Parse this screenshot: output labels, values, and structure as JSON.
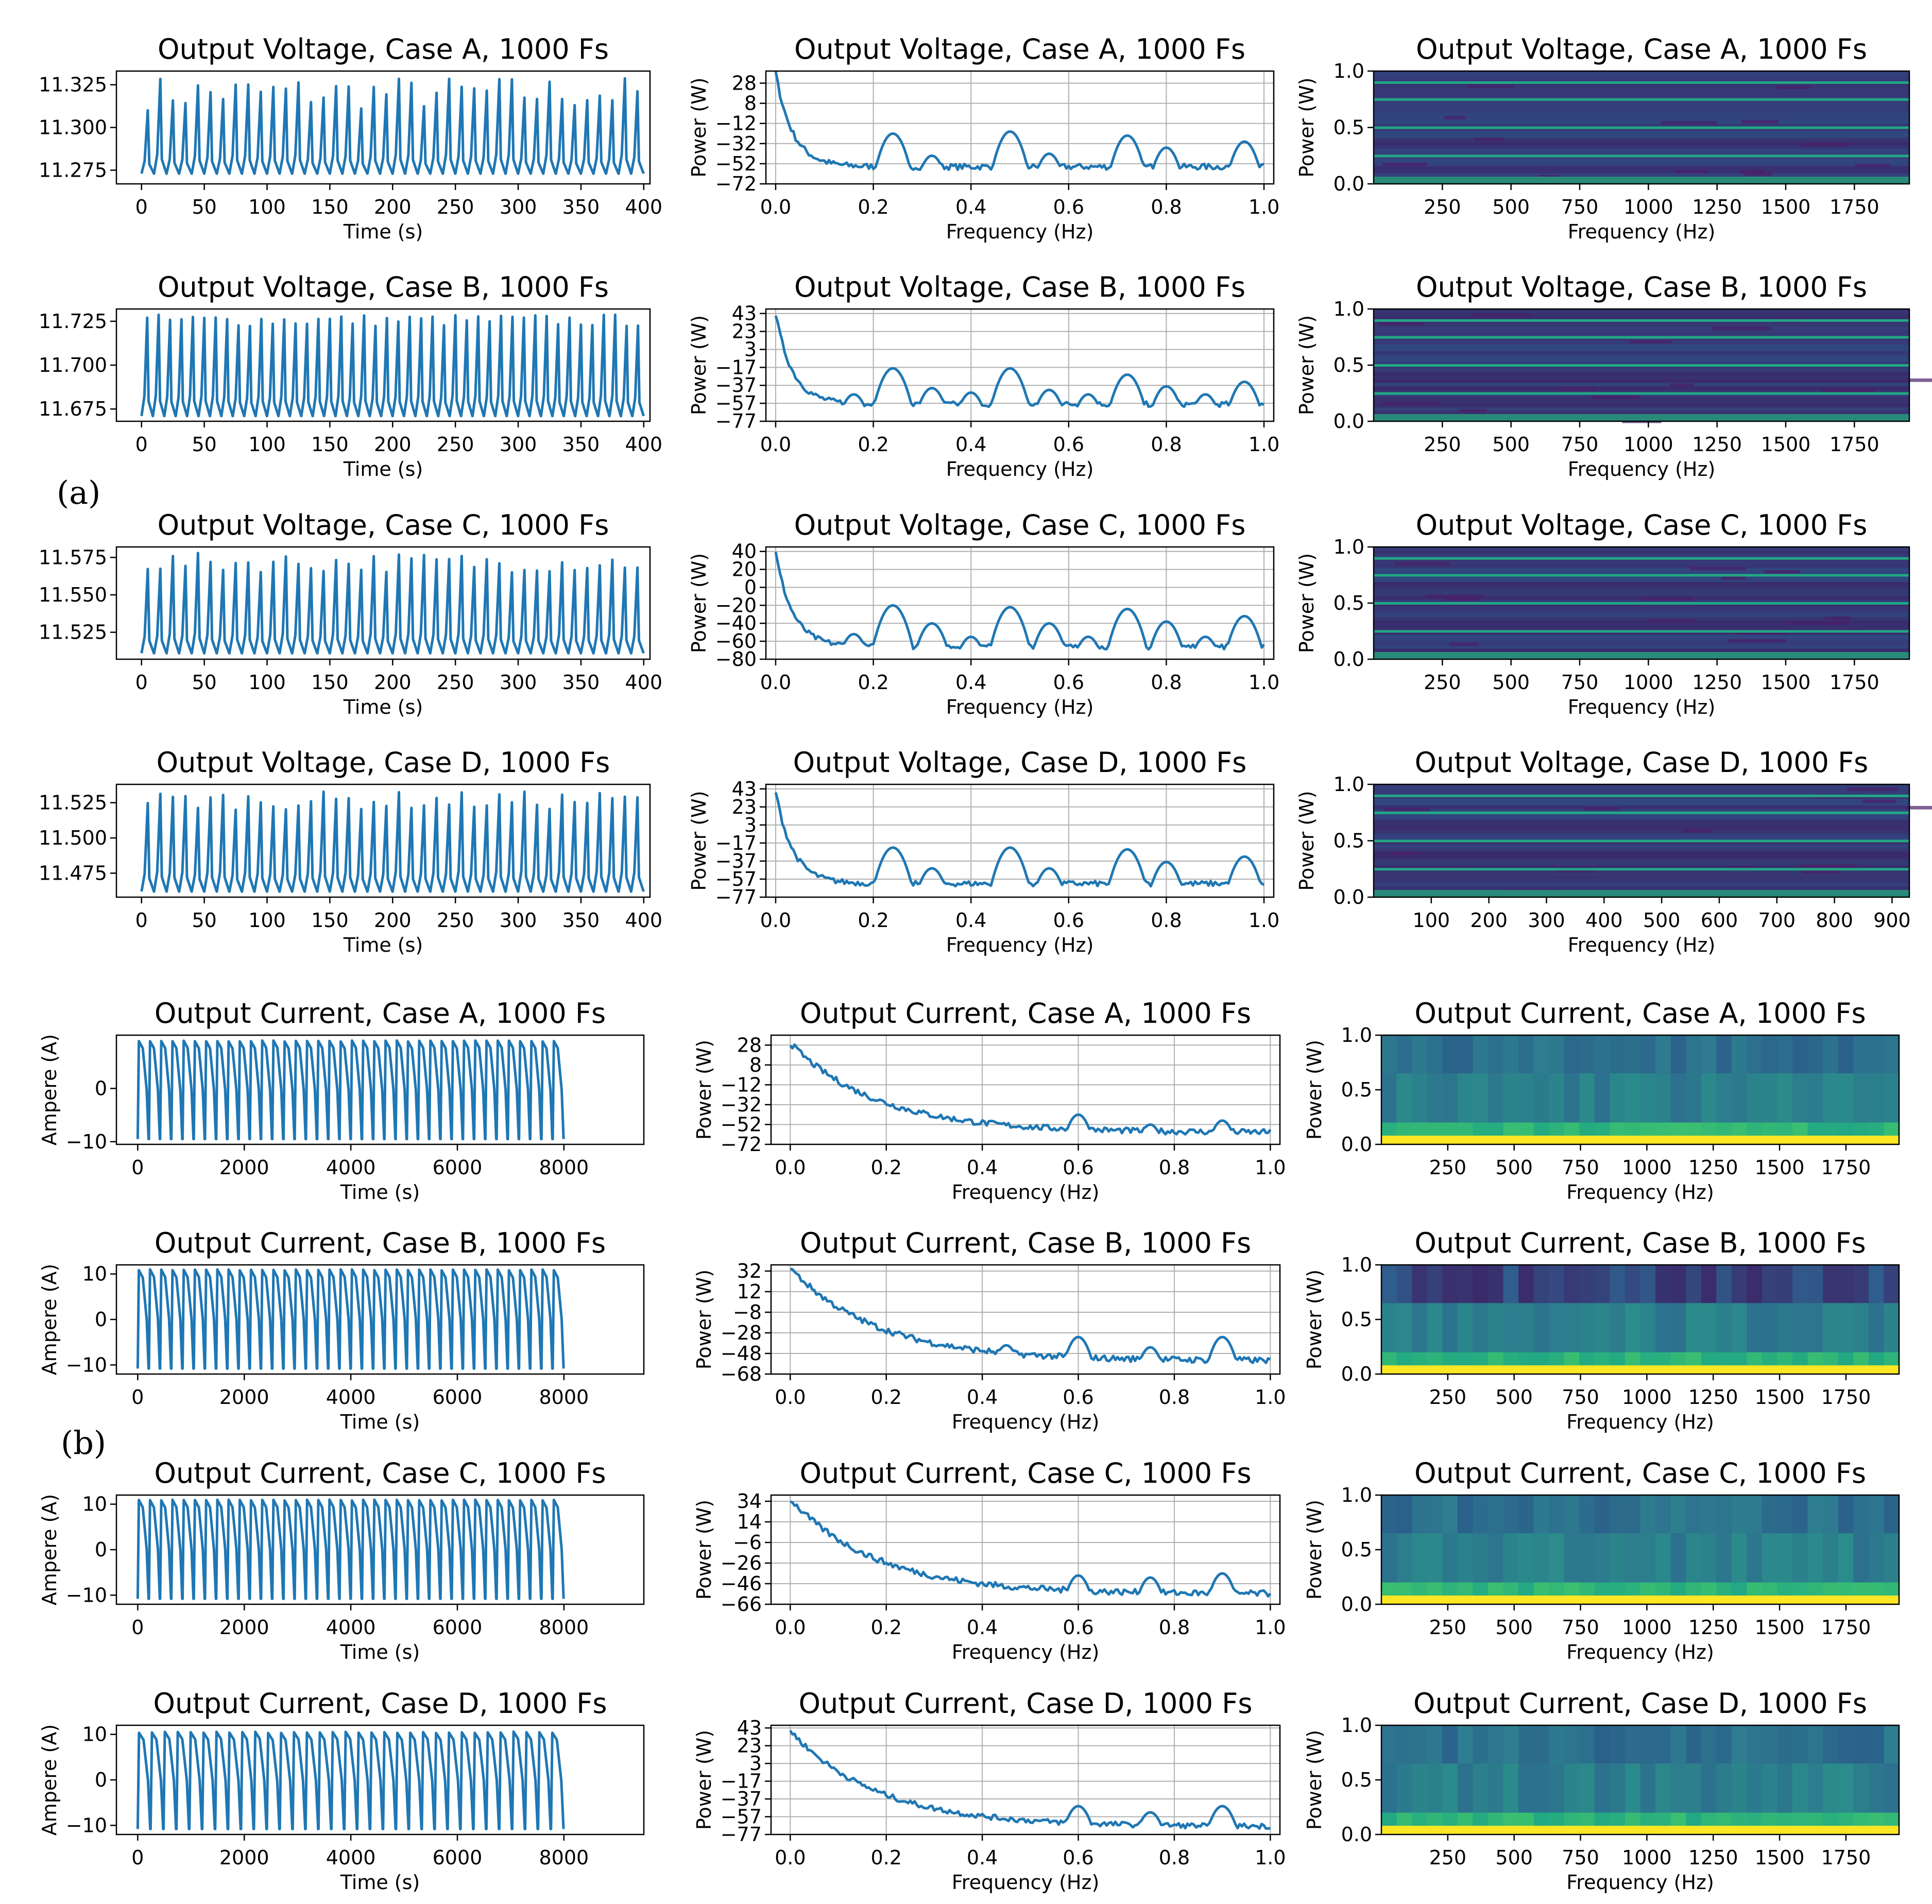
{
  "panel_labels": {
    "a": "(a)",
    "b": "(b)"
  },
  "colors": {
    "line": "#1f77b4",
    "axis": "#000000",
    "grid": "#b0b0b0",
    "spectro_dark": "#3b1a5a",
    "spectro_mid": "#2a6e8e",
    "spectro_bright": "#22a884",
    "spectro_yellow": "#fde725"
  },
  "chart_data": [
    {
      "type": "line",
      "kind": "time",
      "title": "Output Voltage, Case A, 1000 Fs",
      "xlabel": "Time (s)",
      "ylabel": "",
      "xticks": [
        "0",
        "50",
        "100",
        "150",
        "200",
        "250",
        "300",
        "350",
        "400"
      ],
      "xlim": [
        -20,
        405
      ],
      "yticks": [
        "11.275",
        "11.300",
        "11.325"
      ],
      "ytick_values": [
        11.275,
        11.3,
        11.325
      ],
      "ylim": [
        11.267,
        11.333
      ],
      "baseline": 11.273,
      "peaks_range": [
        11.31,
        11.33
      ],
      "cycles": 40,
      "grid": false
    },
    {
      "type": "line",
      "kind": "fft",
      "title": "Output Voltage, Case A, 1000 Fs",
      "xlabel": "Frequency (Hz)",
      "ylabel": "Power (W)",
      "xticks": [
        "0.0",
        "0.2",
        "0.4",
        "0.6",
        "0.8",
        "1.0"
      ],
      "xlim": [
        -0.02,
        1.02
      ],
      "yticks": [
        "28",
        "8",
        "−12",
        "−32",
        "−52",
        "−72"
      ],
      "ytick_values": [
        28,
        8,
        -12,
        -32,
        -52,
        -72
      ],
      "ylim": [
        -72,
        40
      ],
      "peaks": [
        [
          0.24,
          -22
        ],
        [
          0.32,
          -44
        ],
        [
          0.48,
          -20
        ],
        [
          0.56,
          -42
        ],
        [
          0.72,
          -24
        ],
        [
          0.8,
          -36
        ],
        [
          0.96,
          -30
        ]
      ],
      "start": 38,
      "floor": -55,
      "grid": true
    },
    {
      "type": "heatmap",
      "kind": "spectrogram",
      "title": "Output Voltage, Case A, 1000 Fs",
      "xlabel": "Frequency (Hz)",
      "ylabel": "Power (W)",
      "xticks": [
        "250",
        "500",
        "750",
        "1000",
        "1250",
        "1500",
        "1750"
      ],
      "xlim": [
        0,
        1950
      ],
      "yticks": [
        "0.0",
        "0.5",
        "1.0"
      ],
      "ylim": [
        0,
        1
      ],
      "style": "voltage"
    },
    {
      "type": "line",
      "kind": "time",
      "title": "Output Voltage, Case B, 1000 Fs",
      "xlabel": "Time (s)",
      "ylabel": "",
      "xticks": [
        "0",
        "50",
        "100",
        "150",
        "200",
        "250",
        "300",
        "350",
        "400"
      ],
      "xlim": [
        -20,
        405
      ],
      "yticks": [
        "11.675",
        "11.700",
        "11.725"
      ],
      "ytick_values": [
        11.675,
        11.7,
        11.725
      ],
      "ylim": [
        11.668,
        11.732
      ],
      "baseline": 11.671,
      "peaks_range": [
        11.722,
        11.729
      ],
      "cycles": 44,
      "grid": false
    },
    {
      "type": "line",
      "kind": "fft",
      "title": "Output Voltage, Case B, 1000 Fs",
      "xlabel": "Frequency (Hz)",
      "ylabel": "Power (W)",
      "xticks": [
        "0.0",
        "0.2",
        "0.4",
        "0.6",
        "0.8",
        "1.0"
      ],
      "xlim": [
        -0.02,
        1.02
      ],
      "yticks": [
        "43",
        "23",
        "3",
        "−17",
        "−37",
        "−57",
        "−77"
      ],
      "ytick_values": [
        43,
        23,
        3,
        -17,
        -37,
        -57,
        -77
      ],
      "ylim": [
        -77,
        48
      ],
      "peaks": [
        [
          0.16,
          -47
        ],
        [
          0.24,
          -18
        ],
        [
          0.32,
          -40
        ],
        [
          0.4,
          -45
        ],
        [
          0.48,
          -18
        ],
        [
          0.56,
          -42
        ],
        [
          0.64,
          -47
        ],
        [
          0.72,
          -25
        ],
        [
          0.8,
          -38
        ],
        [
          0.88,
          -47
        ],
        [
          0.96,
          -33
        ]
      ],
      "start": 42,
      "floor": -58,
      "grid": true
    },
    {
      "type": "heatmap",
      "kind": "spectrogram",
      "title": "Output Voltage, Case B, 1000 Fs",
      "xlabel": "Frequency (Hz)",
      "ylabel": "Power (W)",
      "xticks": [
        "250",
        "500",
        "750",
        "1000",
        "1250",
        "1500",
        "1750"
      ],
      "xlim": [
        0,
        1950
      ],
      "yticks": [
        "0.0",
        "0.5",
        "1.0"
      ],
      "ylim": [
        0,
        1
      ],
      "style": "voltage"
    },
    {
      "type": "line",
      "kind": "time",
      "title": "Output Voltage, Case C, 1000 Fs",
      "xlabel": "Time (s)",
      "ylabel": "",
      "xticks": [
        "0",
        "50",
        "100",
        "150",
        "200",
        "250",
        "300",
        "350",
        "400"
      ],
      "xlim": [
        -20,
        405
      ],
      "yticks": [
        "11.525",
        "11.550",
        "11.575"
      ],
      "ytick_values": [
        11.525,
        11.55,
        11.575
      ],
      "ylim": [
        11.507,
        11.582
      ],
      "baseline": 11.511,
      "peaks_range": [
        11.565,
        11.578
      ],
      "cycles": 40,
      "grid": false
    },
    {
      "type": "line",
      "kind": "fft",
      "title": "Output Voltage, Case C, 1000 Fs",
      "xlabel": "Frequency (Hz)",
      "ylabel": "Power (W)",
      "xticks": [
        "0.0",
        "0.2",
        "0.4",
        "0.6",
        "0.8",
        "1.0"
      ],
      "xlim": [
        -0.02,
        1.02
      ],
      "yticks": [
        "40",
        "20",
        "0",
        "−20",
        "−40",
        "−60",
        "−80"
      ],
      "ytick_values": [
        40,
        20,
        0,
        -20,
        -40,
        -60,
        -80
      ],
      "ylim": [
        -80,
        45
      ],
      "peaks": [
        [
          0.16,
          -52
        ],
        [
          0.24,
          -20
        ],
        [
          0.32,
          -40
        ],
        [
          0.4,
          -55
        ],
        [
          0.48,
          -22
        ],
        [
          0.56,
          -40
        ],
        [
          0.64,
          -55
        ],
        [
          0.72,
          -24
        ],
        [
          0.8,
          -38
        ],
        [
          0.88,
          -55
        ],
        [
          0.96,
          -32
        ]
      ],
      "start": 38,
      "floor": -66,
      "grid": true
    },
    {
      "type": "heatmap",
      "kind": "spectrogram",
      "title": "Output Voltage, Case C, 1000 Fs",
      "xlabel": "Frequency (Hz)",
      "ylabel": "Power (W)",
      "xticks": [
        "250",
        "500",
        "750",
        "1000",
        "1250",
        "1500",
        "1750"
      ],
      "xlim": [
        0,
        1950
      ],
      "yticks": [
        "0.0",
        "0.5",
        "1.0"
      ],
      "ylim": [
        0,
        1
      ],
      "style": "voltage"
    },
    {
      "type": "line",
      "kind": "time",
      "title": "Output Voltage, Case D, 1000 Fs",
      "xlabel": "Time (s)",
      "ylabel": "",
      "xticks": [
        "0",
        "50",
        "100",
        "150",
        "200",
        "250",
        "300",
        "350",
        "400"
      ],
      "xlim": [
        -20,
        405
      ],
      "yticks": [
        "11.475",
        "11.500",
        "11.525"
      ],
      "ytick_values": [
        11.475,
        11.5,
        11.525
      ],
      "ylim": [
        11.458,
        11.538
      ],
      "baseline": 11.462,
      "peaks_range": [
        11.52,
        11.533
      ],
      "cycles": 40,
      "grid": false
    },
    {
      "type": "line",
      "kind": "fft",
      "title": "Output Voltage, Case D, 1000 Fs",
      "xlabel": "Frequency (Hz)",
      "ylabel": "Power (W)",
      "xticks": [
        "0.0",
        "0.2",
        "0.4",
        "0.6",
        "0.8",
        "1.0"
      ],
      "xlim": [
        -0.02,
        1.02
      ],
      "yticks": [
        "43",
        "23",
        "3",
        "−17",
        "−37",
        "−57",
        "−77"
      ],
      "ytick_values": [
        43,
        23,
        3,
        -17,
        -37,
        -57,
        -77
      ],
      "ylim": [
        -77,
        48
      ],
      "peaks": [
        [
          0.24,
          -22
        ],
        [
          0.32,
          -45
        ],
        [
          0.48,
          -22
        ],
        [
          0.56,
          -45
        ],
        [
          0.72,
          -24
        ],
        [
          0.8,
          -38
        ],
        [
          0.96,
          -32
        ]
      ],
      "start": 40,
      "floor": -62,
      "grid": true
    },
    {
      "type": "heatmap",
      "kind": "spectrogram",
      "title": "Output Voltage, Case D, 1000 Fs",
      "xlabel": "Frequency (Hz)",
      "ylabel": "Power (W)",
      "xticks": [
        "100",
        "200",
        "300",
        "400",
        "500",
        "600",
        "700",
        "800",
        "900"
      ],
      "xlim": [
        0,
        930
      ],
      "yticks": [
        "0.0",
        "0.5",
        "1.0"
      ],
      "ylim": [
        0,
        1
      ],
      "style": "voltage"
    },
    {
      "type": "line",
      "kind": "time",
      "title": "Output Current, Case A, 1000 Fs",
      "xlabel": "Time (s)",
      "ylabel": "Ampere (A)",
      "xticks": [
        "0",
        "2000",
        "4000",
        "6000",
        "8000"
      ],
      "xlim": [
        -400,
        9500
      ],
      "yticks": [
        "−10",
        "0"
      ],
      "ytick_values": [
        -10,
        0
      ],
      "ylim": [
        -10.5,
        10
      ],
      "baseline": -9.5,
      "peaks_range": [
        8.8,
        9.0
      ],
      "cycles": 38,
      "grid": false
    },
    {
      "type": "line",
      "kind": "fft",
      "title": "Output Current, Case A, 1000 Fs",
      "xlabel": "Frequency (Hz)",
      "ylabel": "Power (W)",
      "xticks": [
        "0.0",
        "0.2",
        "0.4",
        "0.6",
        "0.8",
        "1.0"
      ],
      "xlim": [
        -0.04,
        1.02
      ],
      "yticks": [
        "28",
        "8",
        "−12",
        "−32",
        "−52",
        "−72"
      ],
      "ytick_values": [
        28,
        8,
        -12,
        -32,
        -52,
        -72
      ],
      "ylim": [
        -72,
        38
      ],
      "peaks": [
        [
          0.6,
          -42
        ],
        [
          0.75,
          -52
        ],
        [
          0.9,
          -48
        ]
      ],
      "start": 30,
      "floor": -60,
      "grid": true
    },
    {
      "type": "heatmap",
      "kind": "spectrogram",
      "title": "Output Current, Case A, 1000 Fs",
      "xlabel": "Frequency (Hz)",
      "ylabel": "Power (W)",
      "xticks": [
        "250",
        "500",
        "750",
        "1000",
        "1250",
        "1500",
        "1750"
      ],
      "xlim": [
        0,
        1950
      ],
      "yticks": [
        "0.0",
        "0.5",
        "1.0"
      ],
      "ylim": [
        0,
        1
      ],
      "style": "current-a"
    },
    {
      "type": "line",
      "kind": "time",
      "title": "Output Current, Case B, 1000 Fs",
      "xlabel": "Time (s)",
      "ylabel": "Ampere (A)",
      "xticks": [
        "0",
        "2000",
        "4000",
        "6000",
        "8000"
      ],
      "xlim": [
        -400,
        9500
      ],
      "yticks": [
        "−10",
        "0",
        "10"
      ],
      "ytick_values": [
        -10,
        0,
        10
      ],
      "ylim": [
        -12,
        12
      ],
      "baseline": -10.8,
      "peaks_range": [
        10.8,
        11.0
      ],
      "cycles": 38,
      "grid": false
    },
    {
      "type": "line",
      "kind": "fft",
      "title": "Output Current, Case B, 1000 Fs",
      "xlabel": "Frequency (Hz)",
      "ylabel": "Power (W)",
      "xticks": [
        "0.0",
        "0.2",
        "0.4",
        "0.6",
        "0.8",
        "1.0"
      ],
      "xlim": [
        -0.04,
        1.02
      ],
      "yticks": [
        "32",
        "12",
        "−8",
        "−28",
        "−48",
        "−68"
      ],
      "ytick_values": [
        32,
        12,
        -8,
        -28,
        -48,
        -68
      ],
      "ylim": [
        -68,
        38
      ],
      "peaks": [
        [
          0.45,
          -40
        ],
        [
          0.6,
          -32
        ],
        [
          0.75,
          -42
        ],
        [
          0.9,
          -32
        ]
      ],
      "start": 35,
      "floor": -55,
      "grid": true
    },
    {
      "type": "heatmap",
      "kind": "spectrogram",
      "title": "Output Current, Case B, 1000 Fs",
      "xlabel": "Frequency (Hz)",
      "ylabel": "Power (W)",
      "xticks": [
        "250",
        "500",
        "750",
        "1000",
        "1250",
        "1500",
        "1750"
      ],
      "xlim": [
        0,
        1950
      ],
      "yticks": [
        "0.0",
        "0.5",
        "1.0"
      ],
      "ylim": [
        0,
        1
      ],
      "style": "current-b"
    },
    {
      "type": "line",
      "kind": "time",
      "title": "Output Current, Case C, 1000 Fs",
      "xlabel": "Time (s)",
      "ylabel": "Ampere (A)",
      "xticks": [
        "0",
        "2000",
        "4000",
        "6000",
        "8000"
      ],
      "xlim": [
        -400,
        9500
      ],
      "yticks": [
        "−10",
        "0",
        "10"
      ],
      "ytick_values": [
        -10,
        0,
        10
      ],
      "ylim": [
        -12,
        12
      ],
      "baseline": -10.8,
      "peaks_range": [
        10.8,
        11.0
      ],
      "cycles": 38,
      "grid": false
    },
    {
      "type": "line",
      "kind": "fft",
      "title": "Output Current, Case C, 1000 Fs",
      "xlabel": "Frequency (Hz)",
      "ylabel": "Power (W)",
      "xticks": [
        "0.0",
        "0.2",
        "0.4",
        "0.6",
        "0.8",
        "1.0"
      ],
      "xlim": [
        -0.04,
        1.02
      ],
      "yticks": [
        "34",
        "14",
        "−6",
        "−26",
        "−46",
        "−66"
      ],
      "ytick_values": [
        34,
        14,
        -6,
        -26,
        -46,
        -66
      ],
      "ylim": [
        -66,
        40
      ],
      "peaks": [
        [
          0.6,
          -38
        ],
        [
          0.75,
          -40
        ],
        [
          0.9,
          -36
        ]
      ],
      "start": 36,
      "floor": -56,
      "grid": true
    },
    {
      "type": "heatmap",
      "kind": "spectrogram",
      "title": "Output Current, Case C, 1000 Fs",
      "xlabel": "Frequency (Hz)",
      "ylabel": "Power (W)",
      "xticks": [
        "250",
        "500",
        "750",
        "1000",
        "1250",
        "1500",
        "1750"
      ],
      "xlim": [
        0,
        1950
      ],
      "yticks": [
        "0.0",
        "0.5",
        "1.0"
      ],
      "ylim": [
        0,
        1
      ],
      "style": "current-c"
    },
    {
      "type": "line",
      "kind": "time",
      "title": "Output Current, Case D, 1000 Fs",
      "xlabel": "Time (s)",
      "ylabel": "Ampere (A)",
      "xticks": [
        "0",
        "2000",
        "4000",
        "6000",
        "8000"
      ],
      "xlim": [
        -400,
        9500
      ],
      "yticks": [
        "−10",
        "0",
        "10"
      ],
      "ytick_values": [
        -10,
        0,
        10
      ],
      "ylim": [
        -12,
        12
      ],
      "baseline": -10.8,
      "peaks_range": [
        10.3,
        10.6
      ],
      "cycles": 33,
      "grid": false
    },
    {
      "type": "line",
      "kind": "fft",
      "title": "Output Current, Case D, 1000 Fs",
      "xlabel": "Frequency (Hz)",
      "ylabel": "Power (W)",
      "xticks": [
        "0.0",
        "0.2",
        "0.4",
        "0.6",
        "0.8",
        "1.0"
      ],
      "xlim": [
        -0.04,
        1.02
      ],
      "yticks": [
        "43",
        "23",
        "3",
        "−17",
        "−37",
        "−57",
        "−77"
      ],
      "ytick_values": [
        43,
        23,
        3,
        -17,
        -37,
        -57,
        -77
      ],
      "ylim": [
        -77,
        46
      ],
      "peaks": [
        [
          0.6,
          -45
        ],
        [
          0.75,
          -52
        ],
        [
          0.9,
          -45
        ]
      ],
      "start": 40,
      "floor": -68,
      "grid": true
    },
    {
      "type": "heatmap",
      "kind": "spectrogram",
      "title": "Output Current, Case D, 1000 Fs",
      "xlabel": "Frequency (Hz)",
      "ylabel": "Power (W)",
      "xticks": [
        "250",
        "500",
        "750",
        "1000",
        "1250",
        "1500",
        "1750"
      ],
      "xlim": [
        0,
        1950
      ],
      "yticks": [
        "0.0",
        "0.5",
        "1.0"
      ],
      "ylim": [
        0,
        1
      ],
      "style": "current-d"
    }
  ]
}
